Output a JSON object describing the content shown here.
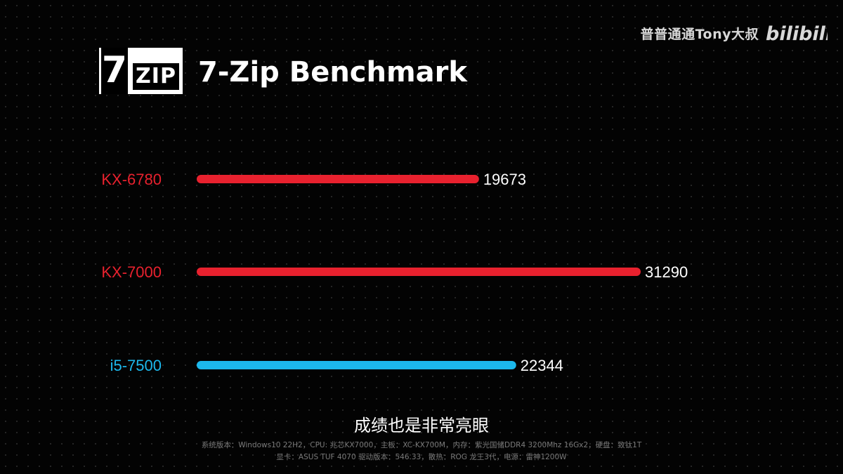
{
  "watermark": {
    "channel": "普普通通Tony大叔",
    "platform": "bilibili"
  },
  "logo": {
    "seven": "7",
    "zip": "ZIP"
  },
  "chart_data": {
    "type": "bar",
    "orientation": "horizontal",
    "title": "7-Zip Benchmark",
    "categories": [
      "KX-6780",
      "KX-7000",
      "i5-7500"
    ],
    "values": [
      19673,
      31290,
      22344
    ],
    "colors": [
      "#e8212e",
      "#e8212e",
      "#1cb8ec"
    ],
    "xlim": [
      0,
      31290
    ],
    "grid": false,
    "legend": "none"
  },
  "subtitle": "成绩也是非常亮眼",
  "specs": {
    "line1": "系统版本：Windows10 22H2，CPU: 兆芯KX7000，主板：XC-KX700M，内存：紫光国储DDR4 3200Mhz 16Gx2，硬盘：致钛1T",
    "line2": "显卡：ASUS TUF 4070 驱动版本：546.33，散热：ROG 龙王3代，电源：雷神1200W"
  }
}
